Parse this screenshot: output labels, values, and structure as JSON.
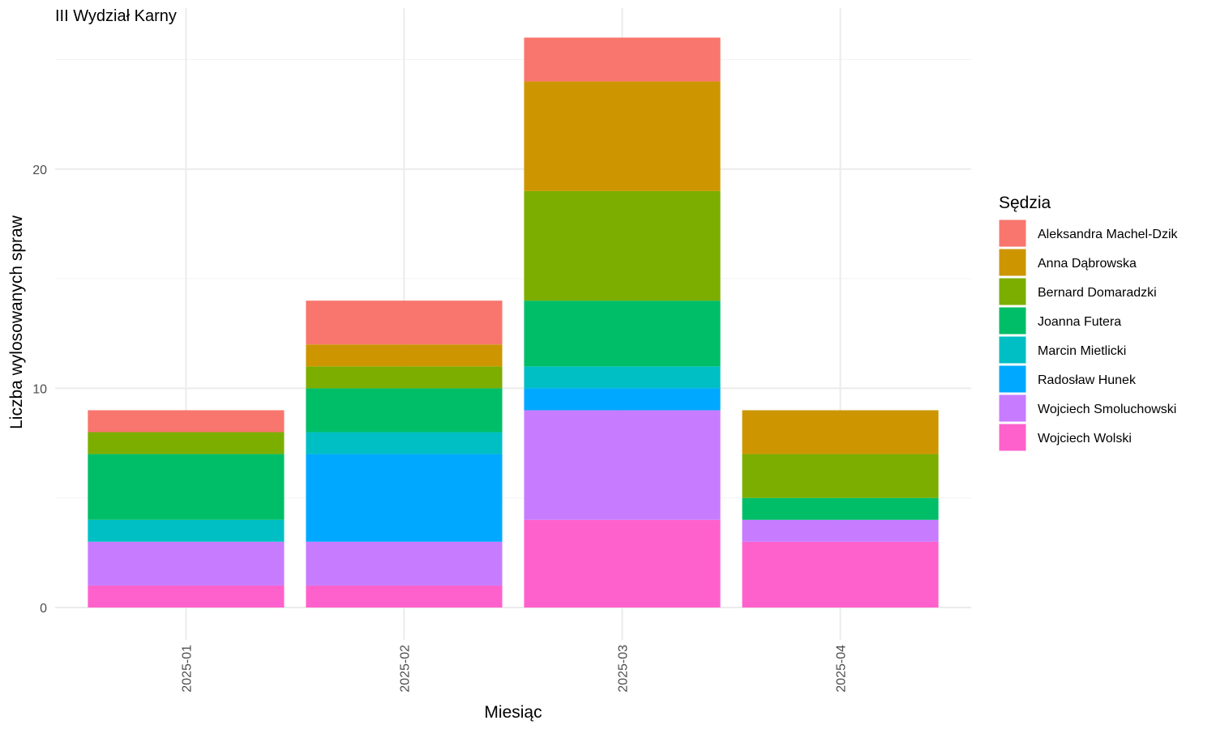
{
  "chart_data": {
    "type": "bar",
    "stacked": true,
    "title": "III Wydział Karny",
    "xlabel": "Miesiąc",
    "ylabel": "Liczba wylosowanych spraw",
    "categories": [
      "2025-01",
      "2025-02",
      "2025-03",
      "2025-04"
    ],
    "ylim": [
      0,
      26
    ],
    "yticks": [
      0,
      10,
      20
    ],
    "grid": true,
    "legend_title": "Sędzia",
    "legend_position": "right",
    "series": [
      {
        "name": "Aleksandra Machel-Dzik",
        "color": "#F8766D",
        "values": [
          1,
          2,
          2,
          0
        ]
      },
      {
        "name": "Anna Dąbrowska",
        "color": "#CD9600",
        "values": [
          0,
          1,
          5,
          2
        ]
      },
      {
        "name": "Bernard Domaradzki",
        "color": "#7CAE00",
        "values": [
          1,
          1,
          5,
          2
        ]
      },
      {
        "name": "Joanna Futera",
        "color": "#00BE67",
        "values": [
          3,
          2,
          3,
          1
        ]
      },
      {
        "name": "Marcin Mietlicki",
        "color": "#00BFC4",
        "values": [
          1,
          1,
          1,
          0
        ]
      },
      {
        "name": "Radosław Hunek",
        "color": "#00A9FF",
        "values": [
          0,
          4,
          1,
          0
        ]
      },
      {
        "name": "Wojciech Smoluchowski",
        "color": "#C77CFF",
        "values": [
          2,
          2,
          5,
          1
        ]
      },
      {
        "name": "Wojciech Wolski",
        "color": "#FF61CC",
        "values": [
          1,
          1,
          4,
          3
        ]
      }
    ]
  }
}
